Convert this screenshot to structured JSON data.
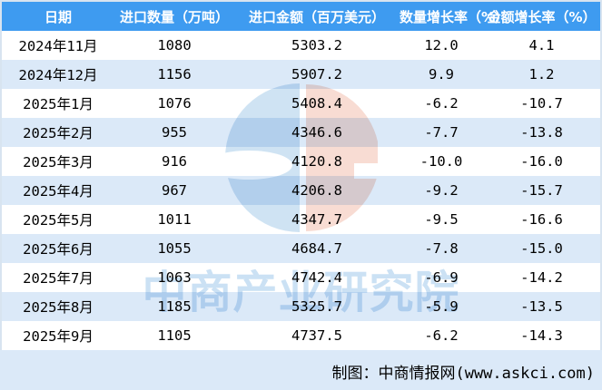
{
  "page": {
    "watermark_text": "中商产业研究院",
    "footer_credit": "制图：中商情报网(www.askci.com)"
  },
  "colors": {
    "header_bg": "#3e9bf0",
    "header_text": "#ffffff",
    "row_odd_bg": "#ffffff",
    "row_even_bg": "#dbe9f8",
    "page_border": "#d8e4f0",
    "body_text": "#000000",
    "watermark_blue": "#cfe3f3",
    "watermark_pink": "#f8dcd3",
    "watermark_text_color": "#cbe1f4"
  },
  "icons": {
    "watermark_logo": "askci-circle-logo-icon"
  },
  "chart_data": {
    "type": "table",
    "title": "",
    "columns": [
      "日期",
      "进口数量（万吨）",
      "进口金额（百万美元）",
      "数量增长率（%）",
      "金额增长率（%）"
    ],
    "rows": [
      [
        "2024年11月",
        "1080",
        "5303.2",
        "12.0",
        "4.1"
      ],
      [
        "2024年12月",
        "1156",
        "5907.2",
        "9.9",
        "1.2"
      ],
      [
        "2025年1月",
        "1076",
        "5408.4",
        "-6.2",
        "-10.7"
      ],
      [
        "2025年2月",
        "955",
        "4346.6",
        "-7.7",
        "-13.8"
      ],
      [
        "2025年3月",
        "916",
        "4120.8",
        "-10.0",
        "-16.0"
      ],
      [
        "2025年4月",
        "967",
        "4206.8",
        "-9.2",
        "-15.7"
      ],
      [
        "2025年5月",
        "1011",
        "4347.7",
        "-9.5",
        "-16.6"
      ],
      [
        "2025年6月",
        "1055",
        "4684.7",
        "-7.8",
        "-15.0"
      ],
      [
        "2025年7月",
        "1063",
        "4742.4",
        "-6.9",
        "-14.2"
      ],
      [
        "2025年8月",
        "1185",
        "5325.7",
        "-5.9",
        "-13.5"
      ],
      [
        "2025年9月",
        "1105",
        "4737.5",
        "-6.2",
        "-14.3"
      ]
    ]
  }
}
